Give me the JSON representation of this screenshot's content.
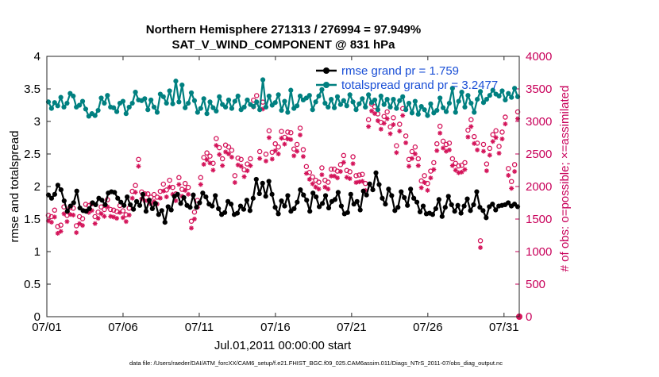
{
  "chart_data": {
    "type": "line",
    "title_line1": "Northern Hemisphere 271313 / 276994 = 97.949%",
    "title_line2": "SAT_V_WIND_COMPONENT @ 831 hPa",
    "xlabel": "Jul.01,2011 00:00:00 start",
    "ylabel_left": "rmse and totalspread",
    "ylabel_right": "# of obs: o=possible; ×=assimilated",
    "footnote": "data file: /Users/raeder/DAI/ATM_forcXX/CAM6_setup/f.e21.FHIST_BGC.f09_025.CAM6assim.011/Diags_NTrS_2011-07/obs_diag_output.nc",
    "x_tick_labels": [
      "07/01",
      "07/06",
      "07/11",
      "07/16",
      "07/21",
      "07/26",
      "07/31"
    ],
    "x_tick_days": [
      0,
      5,
      10,
      15,
      20,
      25,
      30
    ],
    "xlim": [
      0,
      31
    ],
    "ylim_left": [
      0,
      4
    ],
    "y_ticks_left": [
      "0",
      "0.5",
      "1",
      "1.5",
      "2",
      "2.5",
      "3",
      "3.5",
      "4"
    ],
    "ylim_right": [
      0,
      4000
    ],
    "y_ticks_right": [
      "0",
      "500",
      "1000",
      "1500",
      "2000",
      "2500",
      "3000",
      "3500",
      "4000"
    ],
    "colors": {
      "rmse": "#000000",
      "spread": "#008080",
      "obs": "#d4145a",
      "legend_text": "#1a4fd6"
    },
    "series": [
      {
        "name": "rmse grand pr = 1.759",
        "axis": "left",
        "values": [
          1.87,
          1.82,
          1.88,
          2.02,
          1.95,
          1.78,
          1.62,
          1.7,
          1.75,
          1.93,
          1.67,
          1.63,
          1.62,
          1.66,
          1.75,
          1.72,
          1.82,
          1.79,
          1.72,
          1.9,
          1.92,
          1.91,
          1.82,
          1.76,
          1.71,
          1.84,
          1.72,
          1.65,
          1.77,
          1.71,
          1.88,
          1.62,
          1.79,
          1.66,
          1.74,
          1.57,
          1.63,
          1.45,
          1.69,
          1.64,
          1.85,
          1.88,
          1.74,
          1.83,
          1.71,
          1.68,
          1.87,
          1.68,
          1.75,
          1.9,
          1.84,
          1.73,
          1.7,
          1.86,
          1.66,
          1.57,
          1.6,
          1.77,
          1.73,
          1.57,
          1.59,
          1.7,
          1.65,
          1.79,
          1.63,
          1.82,
          2.11,
          1.89,
          2.05,
          1.85,
          2.08,
          1.88,
          1.68,
          1.58,
          1.78,
          1.7,
          1.86,
          1.62,
          1.66,
          1.76,
          1.95,
          1.87,
          1.79,
          1.62,
          1.9,
          1.84,
          1.69,
          1.74,
          1.86,
          1.67,
          1.77,
          1.8,
          1.91,
          1.7,
          1.58,
          1.6,
          1.88,
          1.73,
          1.77,
          1.64,
          1.93,
          1.87,
          2.04,
          1.95,
          2.21,
          2.03,
          1.82,
          1.73,
          1.96,
          1.86,
          1.63,
          1.68,
          1.92,
          1.83,
          1.71,
          1.96,
          1.82,
          1.76,
          1.61,
          1.7,
          1.58,
          1.59,
          1.57,
          1.66,
          1.8,
          1.54,
          1.68,
          1.85,
          1.72,
          1.62,
          1.71,
          1.59,
          1.7,
          1.81,
          1.63,
          1.72,
          1.92,
          1.68,
          1.63,
          1.52,
          1.69,
          1.73,
          1.64,
          1.7,
          1.71,
          1.72,
          1.75,
          1.7,
          1.73,
          1.69
        ]
      },
      {
        "name": "totalspread grand pr = 3.2477",
        "axis": "left",
        "values": [
          3.3,
          3.2,
          3.29,
          3.24,
          3.37,
          3.22,
          3.28,
          3.43,
          3.39,
          3.22,
          3.25,
          3.31,
          3.19,
          3.08,
          3.12,
          3.09,
          3.17,
          3.36,
          3.28,
          3.4,
          3.22,
          3.21,
          3.15,
          3.28,
          3.31,
          3.12,
          3.22,
          3.28,
          3.45,
          3.33,
          3.32,
          3.35,
          3.18,
          3.33,
          3.22,
          3.14,
          3.42,
          3.38,
          3.28,
          3.47,
          3.27,
          3.62,
          3.3,
          3.56,
          3.21,
          3.28,
          3.44,
          3.32,
          3.14,
          3.2,
          3.35,
          3.12,
          3.3,
          3.21,
          3.16,
          3.38,
          3.26,
          3.22,
          3.33,
          3.2,
          3.31,
          3.39,
          3.18,
          3.22,
          3.33,
          3.26,
          3.23,
          3.3,
          3.18,
          3.64,
          3.22,
          3.39,
          3.25,
          3.29,
          3.41,
          3.17,
          3.31,
          3.14,
          3.48,
          3.2,
          3.24,
          3.39,
          3.33,
          3.36,
          3.4,
          3.18,
          3.3,
          3.39,
          3.49,
          3.28,
          3.22,
          3.34,
          3.21,
          3.38,
          3.26,
          3.32,
          3.24,
          3.41,
          3.3,
          3.18,
          3.27,
          3.35,
          3.22,
          3.41,
          3.29,
          3.33,
          3.18,
          3.39,
          3.26,
          3.34,
          3.22,
          3.34,
          3.2,
          3.32,
          3.38,
          3.18,
          3.28,
          3.13,
          3.31,
          3.11,
          3.23,
          3.18,
          3.09,
          3.27,
          3.13,
          3.17,
          3.36,
          3.21,
          3.15,
          3.28,
          3.51,
          3.14,
          3.31,
          3.45,
          3.22,
          3.4,
          3.28,
          3.14,
          3.34,
          3.46,
          3.29,
          3.34,
          3.4,
          3.48,
          3.42,
          3.39,
          3.47,
          3.33,
          3.43,
          3.37,
          3.51,
          3.38
        ]
      }
    ],
    "obs_possible": [
      1520,
      1500,
      1600,
      1350,
      1370,
      1650,
      1520,
      1640,
      1630,
      1360,
      1500,
      1470,
      1690,
      1670,
      1700,
      1500,
      1570,
      1650,
      1610,
      1760,
      1610,
      1600,
      1580,
      1670,
      1590,
      1530,
      1630,
      1890,
      1980,
      2380,
      1880,
      1850,
      1850,
      1800,
      1840,
      1800,
      1890,
      2000,
      1910,
      2060,
      1950,
      1850,
      2100,
      1920,
      2010,
      1950,
      1430,
      1570,
      1750,
      2100,
      2410,
      2480,
      2430,
      2320,
      2700,
      2560,
      2390,
      2600,
      2570,
      2520,
      2130,
      2400,
      2380,
      2220,
      2310,
      2390,
      3290,
      3360,
      2500,
      3260,
      2460,
      2820,
      2490,
      2620,
      2570,
      2810,
      2720,
      2800,
      2790,
      2540,
      2610,
      2860,
      2530,
      2270,
      2180,
      2110,
      2060,
      2030,
      2250,
      2060,
      2030,
      2230,
      2230,
      2200,
      2300,
      2440,
      2210,
      2190,
      2420,
      2130,
      2140,
      2150,
      2010,
      2990,
      3230,
      3190,
      3080,
      2950,
      3040,
      3110,
      2880,
      3020,
      2590,
      2920,
      3160,
      2740,
      2380,
      2500,
      2570,
      2390,
      2050,
      2130,
      2010,
      2200,
      2330,
      2620,
      2890,
      2660,
      2610,
      2630,
      2390,
      2320,
      2280,
      2290,
      2330,
      2830,
      2990,
      2730,
      2630,
      1130,
      2610,
      2310,
      2550,
      2760,
      2820,
      2580,
      2800,
      3030,
      2240,
      2040,
      2300,
      3110
    ],
    "obs_assimilated": [
      1520,
      1500,
      1580,
      1330,
      1360,
      1630,
      1510,
      1620,
      1610,
      1340,
      1480,
      1450,
      1670,
      1650,
      1680,
      1480,
      1560,
      1630,
      1590,
      1740,
      1590,
      1580,
      1560,
      1650,
      1570,
      1510,
      1610,
      1870,
      1960,
      2360,
      1860,
      1830,
      1830,
      1780,
      1820,
      1780,
      1870,
      1980,
      1890,
      2040,
      1930,
      1830,
      2080,
      1900,
      1990,
      1930,
      1410,
      1550,
      1730,
      2080,
      2390,
      2460,
      2410,
      2300,
      2680,
      2540,
      2370,
      2580,
      2550,
      2500,
      2110,
      2380,
      2360,
      2200,
      2290,
      2370,
      3270,
      3340,
      2480,
      3240,
      2440,
      2800,
      2470,
      2600,
      2550,
      2790,
      2700,
      2780,
      2770,
      2520,
      2590,
      2840,
      2510,
      2250,
      2160,
      2090,
      2040,
      2010,
      2230,
      2040,
      2010,
      2210,
      2210,
      2180,
      2280,
      2420,
      2190,
      2170,
      2400,
      2110,
      2120,
      2130,
      1990,
      2970,
      3210,
      3170,
      3060,
      2930,
      3020,
      3090,
      2860,
      3000,
      2570,
      2900,
      3140,
      2720,
      2360,
      2480,
      2550,
      2370,
      2030,
      2110,
      1990,
      2180,
      2310,
      2600,
      2870,
      2640,
      2590,
      2610,
      2370,
      2300,
      2260,
      2270,
      2310,
      2810,
      2970,
      2710,
      2610,
      1110,
      2590,
      2290,
      2530,
      2740,
      2800,
      2560,
      2780,
      3010,
      2220,
      2020,
      2280,
      3090
    ]
  }
}
